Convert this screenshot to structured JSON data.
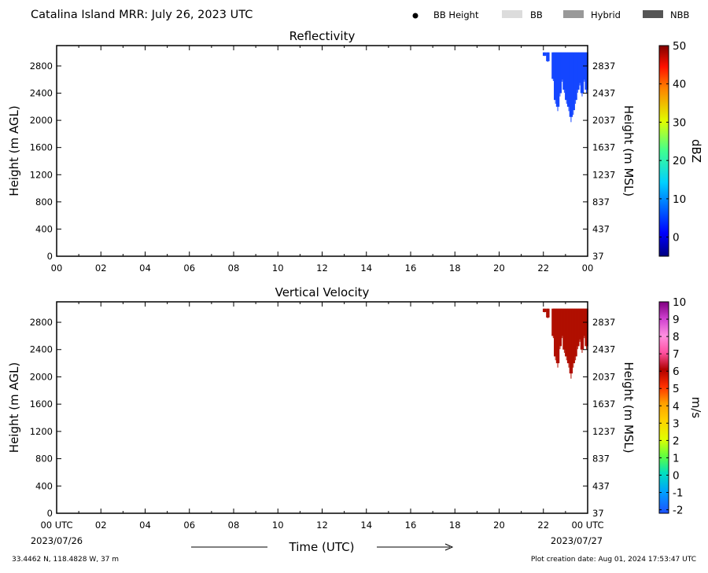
{
  "header": {
    "title": "Catalina Island MRR:  July 26, 2023 UTC",
    "legend": [
      {
        "label": "BB Height",
        "kind": "dot",
        "color": "#000000"
      },
      {
        "label": "BB",
        "kind": "swatch",
        "color": "#dcdcdc"
      },
      {
        "label": "Hybrid",
        "kind": "swatch",
        "color": "#999999"
      },
      {
        "label": "NBB",
        "kind": "swatch",
        "color": "#555555"
      }
    ]
  },
  "footer": {
    "location": "33.4462 N, 118.4828 W, 37 m",
    "creation": "Plot creation date: Aug 01, 2024 17:53:47 UTC",
    "time_axis_label": "Time (UTC)",
    "date_start": "2023/07/26",
    "date_end": "2023/07/27"
  },
  "chart_data": [
    {
      "type": "heatmap",
      "title": "Reflectivity",
      "ylabel": "Height (m AGL)",
      "ylabel_right": "Height (m MSL)",
      "x_ticks": [
        "00",
        "02",
        "04",
        "06",
        "08",
        "10",
        "12",
        "14",
        "16",
        "18",
        "20",
        "22",
        "00"
      ],
      "xlim_hours": [
        0,
        24
      ],
      "ylim": [
        0,
        3100
      ],
      "y_ticks": [
        0,
        400,
        800,
        1200,
        1600,
        2000,
        2400,
        2800
      ],
      "y_ticks_right": [
        "37",
        "437",
        "837",
        "1237",
        "1637",
        "2037",
        "2437",
        "2837"
      ],
      "grid": false,
      "colorbar": {
        "label": "dBZ",
        "range": [
          -5,
          50
        ],
        "ticks": [
          "0",
          "10",
          "20",
          "30",
          "40",
          "50"
        ],
        "tick_values": [
          0,
          10,
          20,
          30,
          40,
          50
        ],
        "palette": "jet"
      },
      "data_color": "#1446ff",
      "echo_columns": [
        {
          "t": 22.05,
          "bottom": 2950,
          "top": 3000
        },
        {
          "t": 22.2,
          "bottom": 2870,
          "top": 3000
        },
        {
          "t": 22.45,
          "bottom": 2610,
          "top": 3000
        },
        {
          "t": 22.55,
          "bottom": 2300,
          "top": 3000
        },
        {
          "t": 22.65,
          "bottom": 2200,
          "top": 3000
        },
        {
          "t": 22.75,
          "bottom": 2400,
          "top": 3000
        },
        {
          "t": 22.85,
          "bottom": 2600,
          "top": 3000
        },
        {
          "t": 22.95,
          "bottom": 2450,
          "top": 3000
        },
        {
          "t": 23.05,
          "bottom": 2300,
          "top": 3000
        },
        {
          "t": 23.15,
          "bottom": 2200,
          "top": 3000
        },
        {
          "t": 23.25,
          "bottom": 2050,
          "top": 3000
        },
        {
          "t": 23.35,
          "bottom": 2150,
          "top": 3000
        },
        {
          "t": 23.45,
          "bottom": 2300,
          "top": 3000
        },
        {
          "t": 23.55,
          "bottom": 2450,
          "top": 3000
        },
        {
          "t": 23.65,
          "bottom": 2550,
          "top": 3000
        },
        {
          "t": 23.75,
          "bottom": 2400,
          "top": 3000
        },
        {
          "t": 23.85,
          "bottom": 2600,
          "top": 3000
        },
        {
          "t": 23.95,
          "bottom": 2450,
          "top": 3000
        }
      ]
    },
    {
      "type": "heatmap",
      "title": "Vertical Velocity",
      "ylabel": "Height (m AGL)",
      "ylabel_right": "Height (m MSL)",
      "x_ticks": [
        "00 UTC",
        "02",
        "04",
        "06",
        "08",
        "10",
        "12",
        "14",
        "16",
        "18",
        "20",
        "22",
        "00 UTC"
      ],
      "xlim_hours": [
        0,
        24
      ],
      "ylim": [
        0,
        3100
      ],
      "y_ticks": [
        0,
        400,
        800,
        1200,
        1600,
        2000,
        2400,
        2800
      ],
      "y_ticks_right": [
        "37",
        "437",
        "837",
        "1237",
        "1637",
        "2037",
        "2437",
        "2837"
      ],
      "grid": false,
      "colorbar": {
        "label": "m/s",
        "range": [
          -2.2,
          10
        ],
        "ticks": [
          "-2",
          "-1",
          "0",
          "1",
          "2",
          "3",
          "4",
          "5",
          "6",
          "7",
          "8",
          "9",
          "10"
        ],
        "tick_values": [
          -2,
          -1,
          0,
          1,
          2,
          3,
          4,
          5,
          6,
          7,
          8,
          9,
          10
        ],
        "palette": "velocity"
      },
      "data_color": "#b00f00",
      "echo_columns": [
        {
          "t": 22.05,
          "bottom": 2950,
          "top": 3000
        },
        {
          "t": 22.2,
          "bottom": 2870,
          "top": 3000
        },
        {
          "t": 22.45,
          "bottom": 2600,
          "top": 3000
        },
        {
          "t": 22.55,
          "bottom": 2300,
          "top": 3000
        },
        {
          "t": 22.65,
          "bottom": 2200,
          "top": 3000
        },
        {
          "t": 22.75,
          "bottom": 2450,
          "top": 3000
        },
        {
          "t": 22.85,
          "bottom": 2600,
          "top": 3000
        },
        {
          "t": 22.95,
          "bottom": 2400,
          "top": 3000
        },
        {
          "t": 23.05,
          "bottom": 2300,
          "top": 3000
        },
        {
          "t": 23.15,
          "bottom": 2200,
          "top": 3000
        },
        {
          "t": 23.25,
          "bottom": 2050,
          "top": 3000
        },
        {
          "t": 23.35,
          "bottom": 2200,
          "top": 3000
        },
        {
          "t": 23.45,
          "bottom": 2300,
          "top": 3000
        },
        {
          "t": 23.55,
          "bottom": 2450,
          "top": 3000
        },
        {
          "t": 23.65,
          "bottom": 2550,
          "top": 3000
        },
        {
          "t": 23.75,
          "bottom": 2400,
          "top": 3000
        },
        {
          "t": 23.85,
          "bottom": 2600,
          "top": 3000
        },
        {
          "t": 23.95,
          "bottom": 2450,
          "top": 3000
        }
      ]
    }
  ]
}
